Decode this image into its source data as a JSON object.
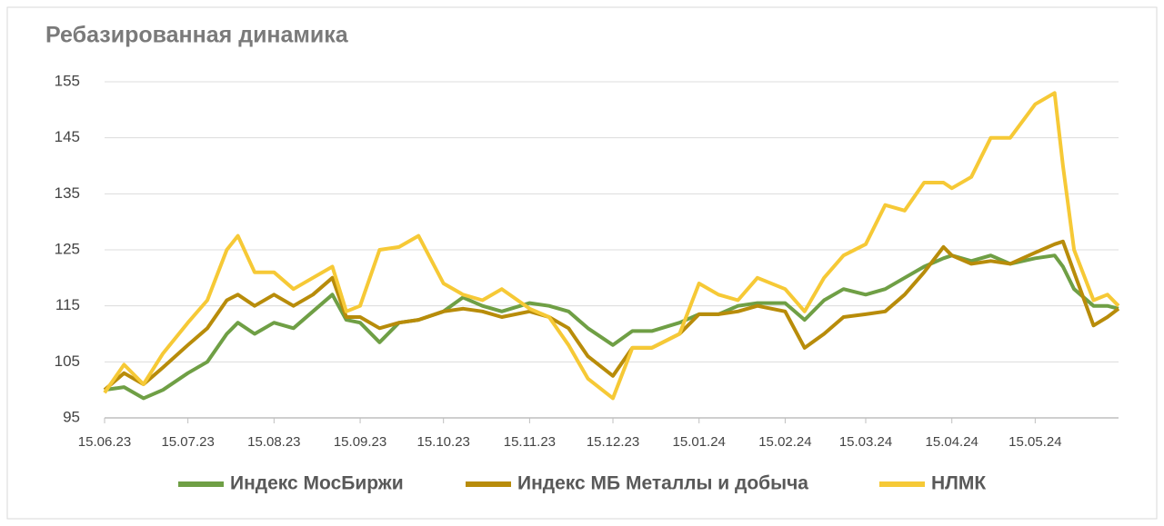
{
  "chart_data": {
    "type": "line",
    "title": "Ребазированная динамика",
    "x": [
      "15.06.23",
      "22.06.23",
      "29.06.23",
      "06.07.23",
      "15.07.23",
      "22.07.23",
      "29.07.23",
      "02.08.23",
      "08.08.23",
      "15.08.23",
      "22.08.23",
      "29.08.23",
      "05.09.23",
      "10.09.23",
      "15.09.23",
      "22.09.23",
      "29.09.23",
      "06.10.23",
      "15.10.23",
      "22.10.23",
      "29.10.23",
      "05.11.23",
      "15.11.23",
      "22.11.23",
      "29.11.23",
      "06.12.23",
      "15.12.23",
      "22.12.23",
      "29.12.23",
      "08.01.24",
      "15.01.24",
      "22.01.24",
      "29.01.24",
      "05.02.24",
      "15.02.24",
      "22.02.24",
      "29.02.24",
      "07.03.24",
      "15.03.24",
      "22.03.24",
      "29.03.24",
      "05.04.24",
      "12.04.24",
      "15.04.24",
      "22.04.24",
      "29.04.24",
      "06.05.24",
      "15.05.24",
      "22.05.24",
      "25.05.24",
      "29.05.24",
      "05.06.24",
      "10.06.24",
      "14.06.24"
    ],
    "series": [
      {
        "name": "Индекс МосБиржи",
        "color": "#6f9f45",
        "values": [
          100,
          100.5,
          98.5,
          100,
          103,
          105,
          110,
          112,
          110,
          112,
          111,
          114,
          117,
          112.5,
          112,
          108.5,
          112,
          112.5,
          114,
          116.5,
          115,
          114,
          115.5,
          115,
          114,
          111,
          108,
          110.5,
          110.5,
          112,
          113.5,
          113.5,
          115,
          115.5,
          115.5,
          112.5,
          116,
          118,
          117,
          118,
          120,
          122,
          123.5,
          124,
          123,
          124,
          122.5,
          123.5,
          124,
          122,
          118,
          115,
          115,
          114.5
        ]
      },
      {
        "name": "Индекс МБ Металлы и добыча",
        "color": "#b88c0a",
        "values": [
          100,
          103,
          101,
          104,
          108,
          111,
          116,
          117,
          115,
          117,
          115,
          117,
          120,
          113,
          113,
          111,
          112,
          112.5,
          114,
          114.5,
          114,
          113,
          114,
          113,
          111,
          106,
          102.5,
          107.5,
          107.5,
          110,
          113.5,
          113.5,
          114,
          115,
          114,
          107.5,
          110,
          113,
          113.5,
          114,
          117,
          121,
          125.5,
          124,
          122.5,
          123,
          122.5,
          124.5,
          126,
          126.5,
          121,
          111.5,
          113,
          114.5
        ]
      },
      {
        "name": "НЛМК",
        "color": "#f6c936",
        "values": [
          99.5,
          104.5,
          101,
          106.5,
          112,
          116,
          125,
          127.5,
          121,
          121,
          118,
          120,
          122,
          114,
          115,
          125,
          125.5,
          127.5,
          119,
          117,
          116,
          118,
          114.5,
          113,
          108,
          102,
          98.5,
          107.5,
          107.5,
          110,
          119,
          117,
          116,
          120,
          118,
          114,
          120,
          124,
          126,
          133,
          132,
          137,
          137,
          136,
          138,
          145,
          145,
          151,
          153,
          140,
          125,
          116,
          117,
          115
        ]
      }
    ],
    "xlim": [
      "15.06.23",
      "14.06.24"
    ],
    "xticks": [
      "15.06.23",
      "15.07.23",
      "15.08.23",
      "15.09.23",
      "15.10.23",
      "15.11.23",
      "15.12.23",
      "15.01.24",
      "15.02.24",
      "15.03.24",
      "15.04.24",
      "15.05.24"
    ],
    "ylim": [
      95,
      155
    ],
    "yticks": [
      95,
      105,
      115,
      125,
      135,
      145,
      155
    ],
    "grid": true,
    "legend": "bottom"
  }
}
